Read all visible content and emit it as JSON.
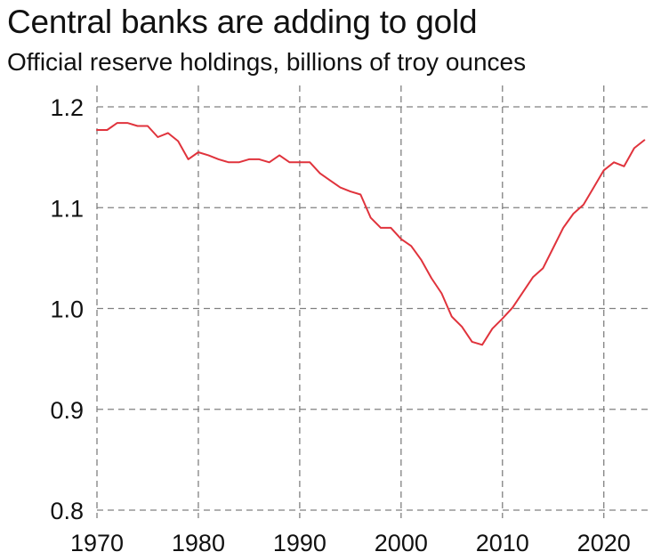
{
  "title": "Central banks are adding to gold",
  "subtitle": "Official reserve holdings, billions of troy ounces",
  "colors": {
    "series": "#e0333c",
    "grid": "#808080",
    "text": "#111111"
  },
  "chart_data": {
    "type": "line",
    "title": "Central banks are adding to gold",
    "subtitle": "Official reserve holdings, billions of troy ounces",
    "xlabel": "",
    "ylabel": "",
    "xlim": [
      1970,
      2024.5
    ],
    "ylim": [
      0.8,
      1.2
    ],
    "xticks": [
      1970,
      1980,
      1990,
      2000,
      2010,
      2020
    ],
    "yticks": [
      0.8,
      0.9,
      1.0,
      1.1,
      1.2
    ],
    "ytick_labels": [
      "0.8",
      "0.9",
      "1.0",
      "1.1",
      "1.2"
    ],
    "grid": true,
    "legend": "none",
    "series": [
      {
        "x": [
          1970,
          1971,
          1972,
          1973,
          1974,
          1975,
          1976,
          1977,
          1978,
          1979,
          1980,
          1981,
          1982,
          1983,
          1984,
          1985,
          1986,
          1987,
          1988,
          1989,
          1990,
          1991,
          1992,
          1993,
          1994,
          1995,
          1996,
          1997,
          1998,
          1999,
          2000,
          2001,
          2002,
          2003,
          2004,
          2005,
          2006,
          2007,
          2008,
          2009,
          2010,
          2011,
          2012,
          2013,
          2014,
          2015,
          2016,
          2017,
          2018,
          2019,
          2020,
          2021,
          2022,
          2023,
          2024
        ],
        "y": [
          1.177,
          1.177,
          1.184,
          1.184,
          1.181,
          1.181,
          1.17,
          1.174,
          1.166,
          1.148,
          1.155,
          1.152,
          1.148,
          1.145,
          1.145,
          1.148,
          1.148,
          1.145,
          1.152,
          1.145,
          1.145,
          1.145,
          1.134,
          1.127,
          1.12,
          1.116,
          1.113,
          1.09,
          1.08,
          1.08,
          1.069,
          1.062,
          1.048,
          1.03,
          1.015,
          0.992,
          0.982,
          0.967,
          0.964,
          0.98,
          0.99,
          1.001,
          1.016,
          1.031,
          1.04,
          1.06,
          1.08,
          1.094,
          1.103,
          1.12,
          1.137,
          1.145,
          1.141,
          1.159,
          1.167
        ]
      }
    ]
  }
}
